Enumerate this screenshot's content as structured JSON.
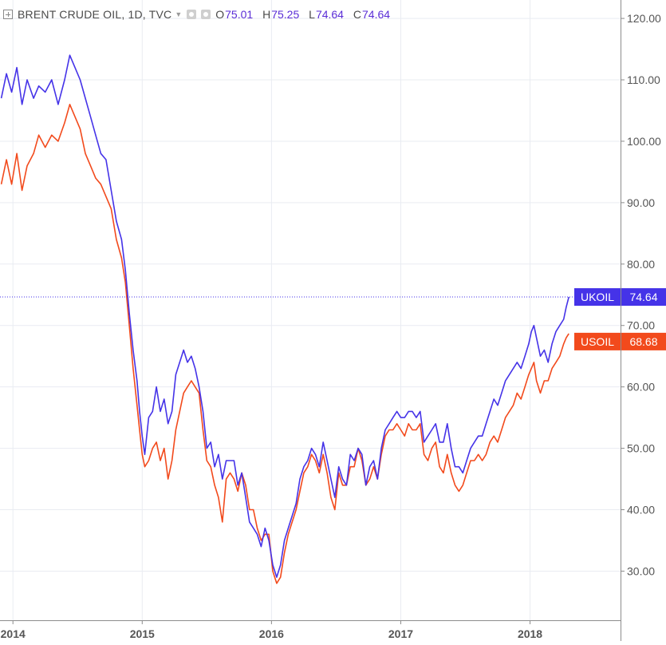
{
  "header": {
    "title": "BRENT CRUDE OIL, 1D, TVC",
    "ohlc": [
      {
        "key": "O",
        "value": "75.01"
      },
      {
        "key": "H",
        "value": "75.25"
      },
      {
        "key": "L",
        "value": "74.64"
      },
      {
        "key": "C",
        "value": "74.64"
      }
    ]
  },
  "colors": {
    "ukoil": "#4533e8",
    "usoil": "#f24a1c",
    "grid": "#e9ecf2",
    "axis_text": "#555555"
  },
  "chart_data": {
    "type": "line",
    "title": "BRENT CRUDE OIL, 1D, TVC",
    "x_ticks": [
      "2014",
      "2015",
      "2016",
      "2017",
      "2018"
    ],
    "y_ticks": [
      "30.00",
      "40.00",
      "50.00",
      "60.00",
      "70.00",
      "80.00",
      "90.00",
      "100.00",
      "110.00",
      "120.00"
    ],
    "xlim": [
      2013.9,
      2018.7
    ],
    "ylim": [
      22,
      123
    ],
    "grid": true,
    "price_line": 74.64,
    "series": [
      {
        "name": "UKOIL",
        "last": "74.64",
        "points": [
          [
            2013.91,
            107
          ],
          [
            2013.95,
            111
          ],
          [
            2013.99,
            108
          ],
          [
            2014.03,
            112
          ],
          [
            2014.07,
            106
          ],
          [
            2014.11,
            110
          ],
          [
            2014.16,
            107
          ],
          [
            2014.2,
            109
          ],
          [
            2014.25,
            108
          ],
          [
            2014.3,
            110
          ],
          [
            2014.35,
            106
          ],
          [
            2014.4,
            110
          ],
          [
            2014.44,
            114
          ],
          [
            2014.48,
            112
          ],
          [
            2014.52,
            110
          ],
          [
            2014.56,
            107
          ],
          [
            2014.6,
            104
          ],
          [
            2014.64,
            101
          ],
          [
            2014.68,
            98
          ],
          [
            2014.72,
            97
          ],
          [
            2014.76,
            92
          ],
          [
            2014.8,
            87
          ],
          [
            2014.84,
            84
          ],
          [
            2014.87,
            79
          ],
          [
            2014.9,
            72
          ],
          [
            2014.93,
            66
          ],
          [
            2014.96,
            61
          ],
          [
            2014.98,
            56
          ],
          [
            2015.0,
            52
          ],
          [
            2015.02,
            49
          ],
          [
            2015.05,
            55
          ],
          [
            2015.08,
            56
          ],
          [
            2015.11,
            60
          ],
          [
            2015.14,
            56
          ],
          [
            2015.17,
            58
          ],
          [
            2015.2,
            54
          ],
          [
            2015.23,
            56
          ],
          [
            2015.26,
            62
          ],
          [
            2015.29,
            64
          ],
          [
            2015.32,
            66
          ],
          [
            2015.35,
            64
          ],
          [
            2015.38,
            65
          ],
          [
            2015.41,
            63
          ],
          [
            2015.44,
            60
          ],
          [
            2015.47,
            56
          ],
          [
            2015.5,
            50
          ],
          [
            2015.53,
            51
          ],
          [
            2015.56,
            47
          ],
          [
            2015.59,
            49
          ],
          [
            2015.62,
            45
          ],
          [
            2015.65,
            48
          ],
          [
            2015.68,
            48
          ],
          [
            2015.71,
            48
          ],
          [
            2015.74,
            44
          ],
          [
            2015.77,
            46
          ],
          [
            2015.8,
            42
          ],
          [
            2015.83,
            38
          ],
          [
            2015.86,
            37
          ],
          [
            2015.89,
            36
          ],
          [
            2015.92,
            34
          ],
          [
            2015.95,
            37
          ],
          [
            2015.98,
            35
          ],
          [
            2016.01,
            31
          ],
          [
            2016.04,
            29
          ],
          [
            2016.07,
            31
          ],
          [
            2016.1,
            35
          ],
          [
            2016.13,
            37
          ],
          [
            2016.16,
            39
          ],
          [
            2016.19,
            41
          ],
          [
            2016.22,
            45
          ],
          [
            2016.25,
            47
          ],
          [
            2016.28,
            48
          ],
          [
            2016.31,
            50
          ],
          [
            2016.34,
            49
          ],
          [
            2016.37,
            47
          ],
          [
            2016.4,
            51
          ],
          [
            2016.43,
            48
          ],
          [
            2016.46,
            45
          ],
          [
            2016.49,
            42
          ],
          [
            2016.52,
            47
          ],
          [
            2016.55,
            45
          ],
          [
            2016.58,
            44
          ],
          [
            2016.61,
            49
          ],
          [
            2016.64,
            48
          ],
          [
            2016.67,
            50
          ],
          [
            2016.7,
            49
          ],
          [
            2016.73,
            44
          ],
          [
            2016.76,
            47
          ],
          [
            2016.79,
            48
          ],
          [
            2016.82,
            45
          ],
          [
            2016.85,
            50
          ],
          [
            2016.88,
            53
          ],
          [
            2016.91,
            54
          ],
          [
            2016.94,
            55
          ],
          [
            2016.97,
            56
          ],
          [
            2017.0,
            55
          ],
          [
            2017.03,
            55
          ],
          [
            2017.06,
            56
          ],
          [
            2017.09,
            56
          ],
          [
            2017.12,
            55
          ],
          [
            2017.15,
            56
          ],
          [
            2017.18,
            51
          ],
          [
            2017.21,
            52
          ],
          [
            2017.24,
            53
          ],
          [
            2017.27,
            54
          ],
          [
            2017.3,
            51
          ],
          [
            2017.33,
            51
          ],
          [
            2017.36,
            54
          ],
          [
            2017.39,
            50
          ],
          [
            2017.42,
            47
          ],
          [
            2017.45,
            47
          ],
          [
            2017.48,
            46
          ],
          [
            2017.51,
            48
          ],
          [
            2017.54,
            50
          ],
          [
            2017.57,
            51
          ],
          [
            2017.6,
            52
          ],
          [
            2017.63,
            52
          ],
          [
            2017.66,
            54
          ],
          [
            2017.69,
            56
          ],
          [
            2017.72,
            58
          ],
          [
            2017.75,
            57
          ],
          [
            2017.78,
            59
          ],
          [
            2017.81,
            61
          ],
          [
            2017.84,
            62
          ],
          [
            2017.87,
            63
          ],
          [
            2017.9,
            64
          ],
          [
            2017.93,
            63
          ],
          [
            2017.96,
            65
          ],
          [
            2017.99,
            67
          ],
          [
            2018.01,
            69
          ],
          [
            2018.03,
            70
          ],
          [
            2018.05,
            68
          ],
          [
            2018.08,
            65
          ],
          [
            2018.11,
            66
          ],
          [
            2018.14,
            64
          ],
          [
            2018.17,
            67
          ],
          [
            2018.2,
            69
          ],
          [
            2018.23,
            70
          ],
          [
            2018.26,
            71
          ],
          [
            2018.28,
            73
          ],
          [
            2018.3,
            74.64
          ]
        ]
      },
      {
        "name": "USOIL",
        "last": "68.68",
        "points": [
          [
            2013.91,
            93
          ],
          [
            2013.95,
            97
          ],
          [
            2013.99,
            93
          ],
          [
            2014.03,
            98
          ],
          [
            2014.07,
            92
          ],
          [
            2014.11,
            96
          ],
          [
            2014.16,
            98
          ],
          [
            2014.2,
            101
          ],
          [
            2014.25,
            99
          ],
          [
            2014.3,
            101
          ],
          [
            2014.35,
            100
          ],
          [
            2014.4,
            103
          ],
          [
            2014.44,
            106
          ],
          [
            2014.48,
            104
          ],
          [
            2014.52,
            102
          ],
          [
            2014.56,
            98
          ],
          [
            2014.6,
            96
          ],
          [
            2014.64,
            94
          ],
          [
            2014.68,
            93
          ],
          [
            2014.72,
            91
          ],
          [
            2014.76,
            89
          ],
          [
            2014.8,
            84
          ],
          [
            2014.84,
            81
          ],
          [
            2014.87,
            77
          ],
          [
            2014.9,
            70
          ],
          [
            2014.93,
            63
          ],
          [
            2014.96,
            57
          ],
          [
            2014.98,
            53
          ],
          [
            2015.0,
            49
          ],
          [
            2015.02,
            47
          ],
          [
            2015.05,
            48
          ],
          [
            2015.08,
            50
          ],
          [
            2015.11,
            51
          ],
          [
            2015.14,
            48
          ],
          [
            2015.17,
            50
          ],
          [
            2015.2,
            45
          ],
          [
            2015.23,
            48
          ],
          [
            2015.26,
            53
          ],
          [
            2015.29,
            56
          ],
          [
            2015.32,
            59
          ],
          [
            2015.35,
            60
          ],
          [
            2015.38,
            61
          ],
          [
            2015.41,
            60
          ],
          [
            2015.44,
            59
          ],
          [
            2015.47,
            53
          ],
          [
            2015.5,
            48
          ],
          [
            2015.53,
            47
          ],
          [
            2015.56,
            44
          ],
          [
            2015.59,
            42
          ],
          [
            2015.62,
            38
          ],
          [
            2015.65,
            45
          ],
          [
            2015.68,
            46
          ],
          [
            2015.71,
            45
          ],
          [
            2015.74,
            43
          ],
          [
            2015.77,
            46
          ],
          [
            2015.8,
            44
          ],
          [
            2015.83,
            40
          ],
          [
            2015.86,
            40
          ],
          [
            2015.89,
            37
          ],
          [
            2015.92,
            35
          ],
          [
            2015.95,
            36
          ],
          [
            2015.98,
            36
          ],
          [
            2016.01,
            30
          ],
          [
            2016.04,
            28
          ],
          [
            2016.07,
            29
          ],
          [
            2016.1,
            33
          ],
          [
            2016.13,
            36
          ],
          [
            2016.16,
            38
          ],
          [
            2016.19,
            40
          ],
          [
            2016.22,
            43
          ],
          [
            2016.25,
            46
          ],
          [
            2016.28,
            47
          ],
          [
            2016.31,
            49
          ],
          [
            2016.34,
            48
          ],
          [
            2016.37,
            46
          ],
          [
            2016.4,
            49
          ],
          [
            2016.43,
            46
          ],
          [
            2016.46,
            42
          ],
          [
            2016.49,
            40
          ],
          [
            2016.52,
            46
          ],
          [
            2016.55,
            44
          ],
          [
            2016.58,
            44
          ],
          [
            2016.61,
            47
          ],
          [
            2016.64,
            47
          ],
          [
            2016.67,
            50
          ],
          [
            2016.7,
            48
          ],
          [
            2016.73,
            44
          ],
          [
            2016.76,
            45
          ],
          [
            2016.79,
            47
          ],
          [
            2016.82,
            45
          ],
          [
            2016.85,
            49
          ],
          [
            2016.88,
            52
          ],
          [
            2016.91,
            53
          ],
          [
            2016.94,
            53
          ],
          [
            2016.97,
            54
          ],
          [
            2017.0,
            53
          ],
          [
            2017.03,
            52
          ],
          [
            2017.06,
            54
          ],
          [
            2017.09,
            53
          ],
          [
            2017.12,
            53
          ],
          [
            2017.15,
            54
          ],
          [
            2017.18,
            49
          ],
          [
            2017.21,
            48
          ],
          [
            2017.24,
            50
          ],
          [
            2017.27,
            51
          ],
          [
            2017.3,
            47
          ],
          [
            2017.33,
            46
          ],
          [
            2017.36,
            49
          ],
          [
            2017.39,
            46
          ],
          [
            2017.42,
            44
          ],
          [
            2017.45,
            43
          ],
          [
            2017.48,
            44
          ],
          [
            2017.51,
            46
          ],
          [
            2017.54,
            48
          ],
          [
            2017.57,
            48
          ],
          [
            2017.6,
            49
          ],
          [
            2017.63,
            48
          ],
          [
            2017.66,
            49
          ],
          [
            2017.69,
            51
          ],
          [
            2017.72,
            52
          ],
          [
            2017.75,
            51
          ],
          [
            2017.78,
            53
          ],
          [
            2017.81,
            55
          ],
          [
            2017.84,
            56
          ],
          [
            2017.87,
            57
          ],
          [
            2017.9,
            59
          ],
          [
            2017.93,
            58
          ],
          [
            2017.96,
            60
          ],
          [
            2017.99,
            62
          ],
          [
            2018.01,
            63
          ],
          [
            2018.03,
            64
          ],
          [
            2018.05,
            61
          ],
          [
            2018.08,
            59
          ],
          [
            2018.11,
            61
          ],
          [
            2018.14,
            61
          ],
          [
            2018.17,
            63
          ],
          [
            2018.2,
            64
          ],
          [
            2018.23,
            65
          ],
          [
            2018.26,
            67
          ],
          [
            2018.28,
            68
          ],
          [
            2018.3,
            68.68
          ]
        ]
      }
    ]
  }
}
